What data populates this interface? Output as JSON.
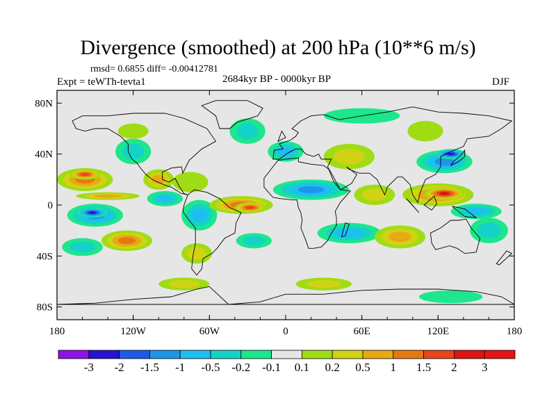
{
  "title": "Divergence (smoothed) at 200 hPa (10**6 m/s)",
  "stats": "rmsd= 0.6855 diff= -0.00412781",
  "experiment": "Expt = teWTh-tevta1",
  "period": "2684kyr BP - 0000kyr BP",
  "season": "DJF",
  "chart_data": {
    "type": "heatmap",
    "projection": "cylindrical-equidistant",
    "xlim": [
      -180,
      180
    ],
    "ylim": [
      -90,
      90
    ],
    "x_ticks": [
      {
        "value": -180,
        "label": "180"
      },
      {
        "value": -120,
        "label": "120W"
      },
      {
        "value": -60,
        "label": "60W"
      },
      {
        "value": 0,
        "label": "0"
      },
      {
        "value": 60,
        "label": "60E"
      },
      {
        "value": 120,
        "label": "120E"
      },
      {
        "value": 180,
        "label": "180"
      }
    ],
    "y_ticks": [
      {
        "value": 80,
        "label": "80N"
      },
      {
        "value": 40,
        "label": "40N"
      },
      {
        "value": 0,
        "label": "0"
      },
      {
        "value": -40,
        "label": "40S"
      },
      {
        "value": -80,
        "label": "80S"
      }
    ],
    "colorbar": {
      "labels": [
        "-3",
        "-2",
        "-1.5",
        "-1",
        "-0.5",
        "-0.2",
        "-0.1",
        "0.1",
        "0.2",
        "0.5",
        "1",
        "1.5",
        "2",
        "3"
      ],
      "colors": [
        "#8c14e6",
        "#2814d2",
        "#1e5ae6",
        "#1e96e6",
        "#1ebef0",
        "#14d2c8",
        "#1ee68c",
        "#e6e6e6",
        "#a0dc14",
        "#d2d214",
        "#e6aa14",
        "#e67814",
        "#e6461e",
        "#dc1414",
        "#e61414"
      ]
    },
    "regions": [
      {
        "lon": -158,
        "lat": 20,
        "rx": 22,
        "ry": 9,
        "level": 4
      },
      {
        "lon": -158,
        "lat": 24,
        "rx": 12,
        "ry": 4,
        "level": 5
      },
      {
        "lon": -150,
        "lat": -8,
        "rx": 22,
        "ry": 9,
        "level": -4
      },
      {
        "lon": -152,
        "lat": -6,
        "rx": 12,
        "ry": 4,
        "level": -6
      },
      {
        "lon": -140,
        "lat": 7,
        "rx": 25,
        "ry": 3,
        "level": 3
      },
      {
        "lon": -160,
        "lat": -33,
        "rx": 16,
        "ry": 7,
        "level": -2
      },
      {
        "lon": -125,
        "lat": -28,
        "rx": 20,
        "ry": 8,
        "level": 4
      },
      {
        "lon": -120,
        "lat": 42,
        "rx": 14,
        "ry": 10,
        "level": -2
      },
      {
        "lon": -120,
        "lat": 58,
        "rx": 12,
        "ry": 6,
        "level": 1
      },
      {
        "lon": -100,
        "lat": 20,
        "rx": 12,
        "ry": 8,
        "level": 3
      },
      {
        "lon": -95,
        "lat": 5,
        "rx": 14,
        "ry": 6,
        "level": -3
      },
      {
        "lon": -75,
        "lat": 18,
        "rx": 14,
        "ry": 8,
        "level": 1
      },
      {
        "lon": -68,
        "lat": -8,
        "rx": 14,
        "ry": 12,
        "level": -3
      },
      {
        "lon": -70,
        "lat": -38,
        "rx": 12,
        "ry": 8,
        "level": 2
      },
      {
        "lon": -80,
        "lat": -62,
        "rx": 20,
        "ry": 5,
        "level": 2
      },
      {
        "lon": -35,
        "lat": 0,
        "rx": 25,
        "ry": 7,
        "level": 4
      },
      {
        "lon": -28,
        "lat": -2,
        "rx": 12,
        "ry": 4,
        "level": 5
      },
      {
        "lon": -25,
        "lat": -28,
        "rx": 14,
        "ry": 6,
        "level": -2
      },
      {
        "lon": -30,
        "lat": 58,
        "rx": 14,
        "ry": 10,
        "level": -2
      },
      {
        "lon": 0,
        "lat": 42,
        "rx": 14,
        "ry": 8,
        "level": -3
      },
      {
        "lon": 20,
        "lat": 12,
        "rx": 30,
        "ry": 8,
        "level": -4
      },
      {
        "lon": 50,
        "lat": 38,
        "rx": 20,
        "ry": 10,
        "level": 2
      },
      {
        "lon": 70,
        "lat": 8,
        "rx": 16,
        "ry": 8,
        "level": 2
      },
      {
        "lon": 50,
        "lat": -22,
        "rx": 25,
        "ry": 8,
        "level": -3
      },
      {
        "lon": 90,
        "lat": -25,
        "rx": 20,
        "ry": 9,
        "level": 3
      },
      {
        "lon": 125,
        "lat": 34,
        "rx": 22,
        "ry": 9,
        "level": -4
      },
      {
        "lon": 130,
        "lat": 40,
        "rx": 12,
        "ry": 4,
        "level": -6
      },
      {
        "lon": 120,
        "lat": 8,
        "rx": 28,
        "ry": 9,
        "level": 4
      },
      {
        "lon": 125,
        "lat": 9,
        "rx": 16,
        "ry": 5,
        "level": 6
      },
      {
        "lon": 150,
        "lat": -5,
        "rx": 20,
        "ry": 6,
        "level": -3
      },
      {
        "lon": 160,
        "lat": -20,
        "rx": 15,
        "ry": 10,
        "level": -2
      },
      {
        "lon": 110,
        "lat": 58,
        "rx": 14,
        "ry": 8,
        "level": 1
      },
      {
        "lon": 60,
        "lat": 70,
        "rx": 30,
        "ry": 6,
        "level": -1
      },
      {
        "lon": 30,
        "lat": -62,
        "rx": 22,
        "ry": 5,
        "level": 2
      },
      {
        "lon": 130,
        "lat": -72,
        "rx": 25,
        "ry": 5,
        "level": -1
      }
    ]
  }
}
